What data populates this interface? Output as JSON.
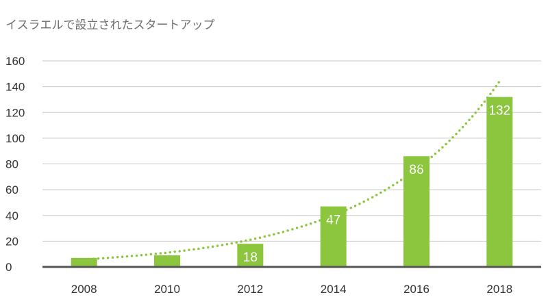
{
  "title": "イスラエルで設立されたスタートアップ",
  "colors": {
    "bar": "#8cc63f",
    "trend": "#8cc63f",
    "grid": "#c8c8c8",
    "axis": "#555555"
  },
  "chart_data": {
    "type": "bar",
    "title": "イスラエルで設立されたスタートアップ",
    "xlabel": "",
    "ylabel": "",
    "categories": [
      "2008",
      "2010",
      "2012",
      "2014",
      "2016",
      "2018"
    ],
    "values": [
      7,
      9,
      18,
      47,
      86,
      132
    ],
    "data_labels": [
      "",
      "",
      "18",
      "47",
      "86",
      "132"
    ],
    "ylim": [
      0,
      160
    ],
    "yticks": [
      0,
      20,
      40,
      60,
      80,
      100,
      120,
      140,
      160
    ],
    "grid": true,
    "trendline": {
      "type": "exponential",
      "style": "dotted"
    }
  }
}
